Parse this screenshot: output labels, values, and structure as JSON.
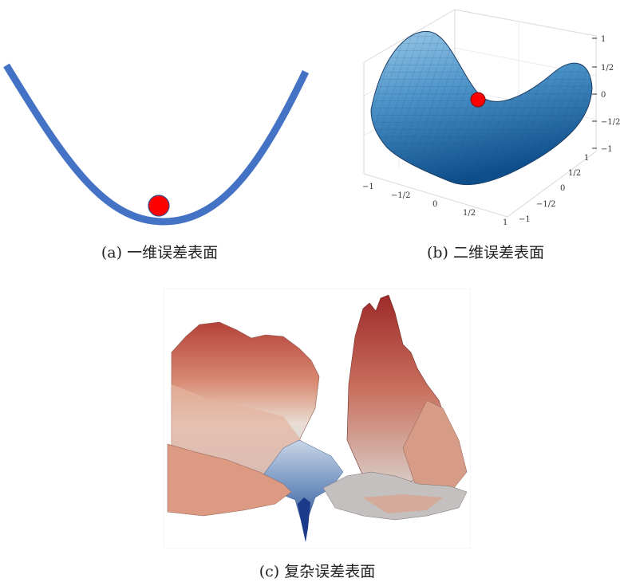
{
  "figure": {
    "panels": [
      {
        "id": "a",
        "caption": "(a) 一维误差表面",
        "curve_color": "#4472C4",
        "ball_color": "#FF0000"
      },
      {
        "id": "b",
        "caption": "(b) 二维误差表面",
        "ball_color": "#FF0000",
        "axis_ticks": {
          "x": [
            "−1",
            "−1/2",
            "0",
            "1/2",
            "1"
          ],
          "y": [
            "−1",
            "−1/2",
            "0",
            "1/2",
            "1"
          ],
          "z": [
            "−1",
            "−1/2",
            "0",
            "1/2",
            "1"
          ]
        }
      },
      {
        "id": "c",
        "caption": "(c) 复杂误差表面"
      }
    ]
  }
}
